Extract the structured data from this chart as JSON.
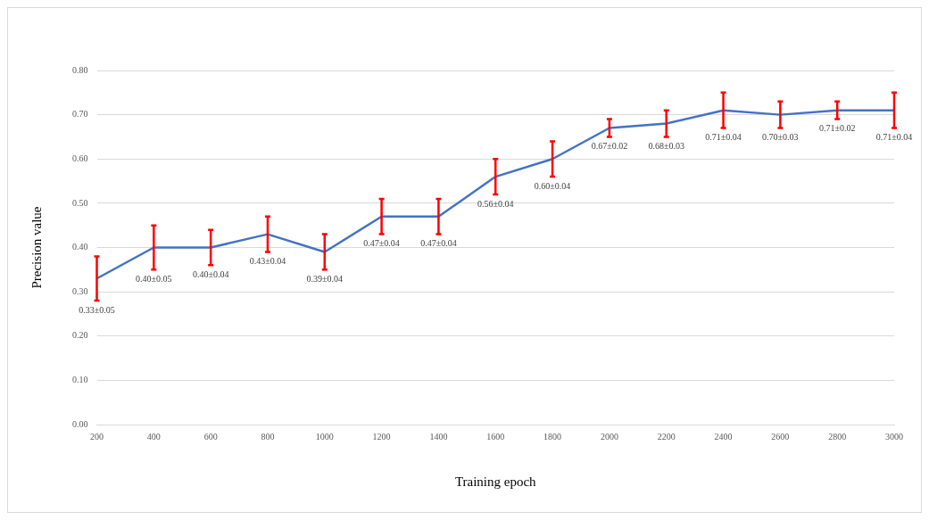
{
  "chart_data": {
    "type": "line",
    "xlabel": "Training epoch",
    "ylabel": "Precision value",
    "categories": [
      "200",
      "400",
      "600",
      "800",
      "1000",
      "1200",
      "1400",
      "1600",
      "1800",
      "2000",
      "2200",
      "2400",
      "2600",
      "2800",
      "3000"
    ],
    "series": [
      {
        "color": "#4472c4",
        "values": [
          0.33,
          0.4,
          0.4,
          0.43,
          0.39,
          0.47,
          0.47,
          0.56,
          0.6,
          0.67,
          0.68,
          0.71,
          0.7,
          0.71,
          0.71
        ],
        "errors": [
          0.05,
          0.05,
          0.04,
          0.04,
          0.04,
          0.04,
          0.04,
          0.04,
          0.04,
          0.02,
          0.03,
          0.04,
          0.03,
          0.02,
          0.04
        ],
        "value_labels": [
          "0.33±0.05",
          "0.40±0.05",
          "0.40±0.04",
          "0.43±0.04",
          "0.39±0.04",
          "0.47±0.04",
          "0.47±0.04",
          "0.56±0.04",
          "0.60±0.04",
          "0.67±0.02",
          "0.68±0.03",
          "0.71±0.04",
          "0.70±0.03",
          "0.71±0.02",
          "0.71±0.04"
        ]
      }
    ],
    "ylim": [
      0,
      0.8
    ],
    "yticks": [
      {
        "value": 0,
        "label": "0.00"
      },
      {
        "value": 0.1,
        "label": "0.10"
      },
      {
        "value": 0.2,
        "label": "0.20"
      },
      {
        "value": 0.3,
        "label": "0.30"
      },
      {
        "value": 0.4,
        "label": "0.40"
      },
      {
        "value": 0.5,
        "label": "0.50"
      },
      {
        "value": 0.6,
        "label": "0.60"
      },
      {
        "value": 0.7,
        "label": "0.70"
      },
      {
        "value": 0.8,
        "label": "0.80"
      }
    ],
    "grid": "y",
    "marker": "none",
    "line_style": "solid",
    "legend": false
  }
}
